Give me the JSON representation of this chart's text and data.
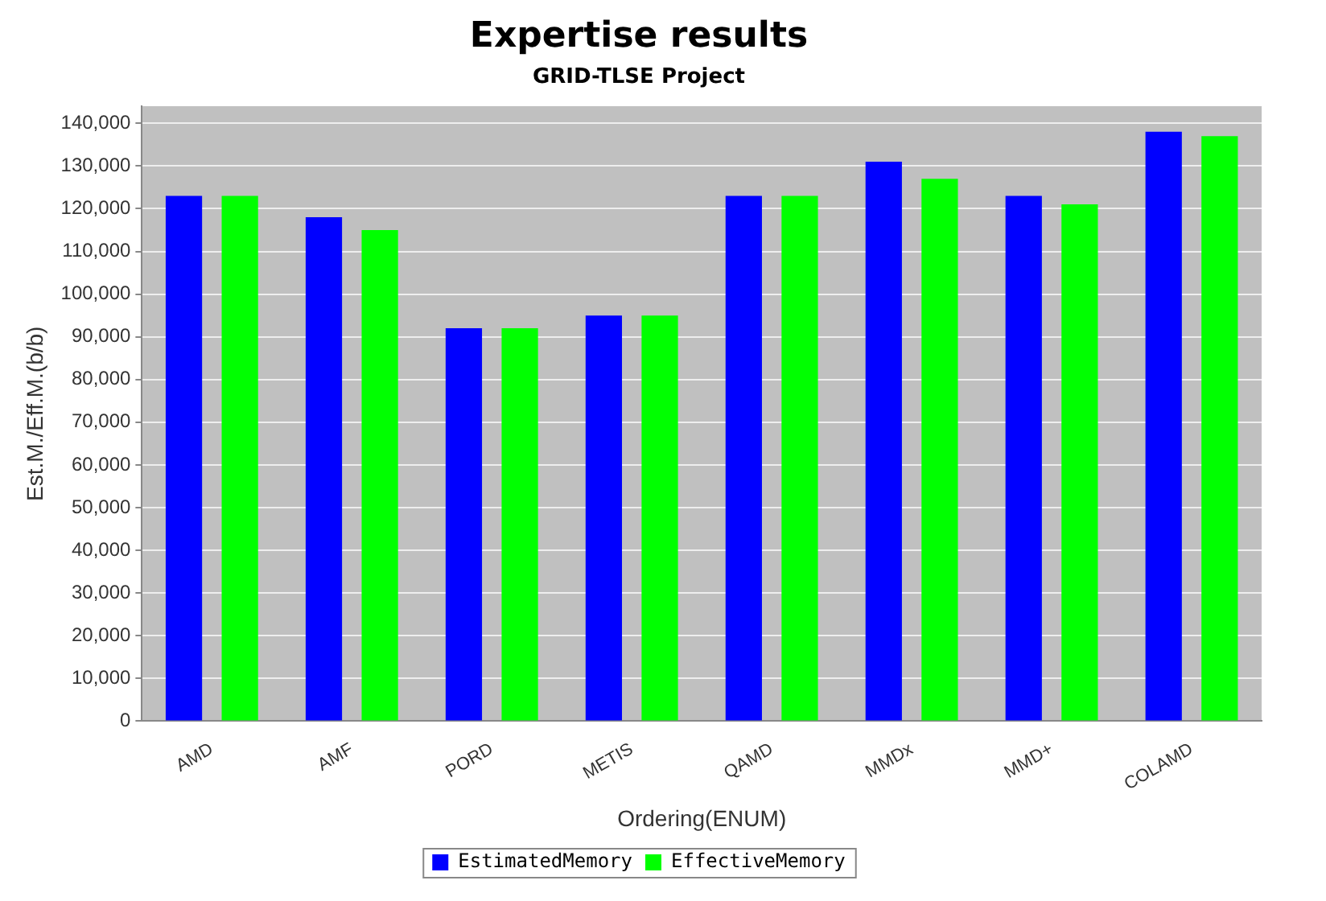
{
  "chart_data": {
    "type": "bar",
    "title": "Expertise results",
    "subtitle": "GRID-TLSE Project",
    "xlabel": "Ordering(ENUM)",
    "ylabel": "Est.M./Eff.M.(b/b)",
    "categories": [
      "AMD",
      "AMF",
      "PORD",
      "METIS",
      "QAMD",
      "MMDx",
      "MMD+",
      "COLAMD"
    ],
    "series": [
      {
        "name": "EstimatedMemory",
        "color": "#0000ff",
        "values": [
          123000,
          118000,
          92000,
          95000,
          123000,
          131000,
          123000,
          138000
        ]
      },
      {
        "name": "EffectiveMemory",
        "color": "#00ff00",
        "values": [
          123000,
          115000,
          92000,
          95000,
          123000,
          127000,
          121000,
          137000
        ]
      }
    ],
    "ylim": [
      0,
      144000
    ],
    "yticks": [
      0,
      {
        "value": 10000,
        "label": "10,000"
      },
      {
        "value": 20000,
        "label": "20,000"
      },
      {
        "value": 30000,
        "label": "30,000"
      },
      {
        "value": 40000,
        "label": "40,000"
      },
      {
        "value": 50000,
        "label": "50,000"
      },
      {
        "value": 60000,
        "label": "60,000"
      },
      {
        "value": 70000,
        "label": "70,000"
      },
      {
        "value": 80000,
        "label": "80,000"
      },
      {
        "value": 90000,
        "label": "90,000"
      },
      {
        "value": 100000,
        "label": "100,000"
      },
      {
        "value": 110000,
        "label": "110,000"
      },
      {
        "value": 120000,
        "label": "120,000"
      },
      {
        "value": 130000,
        "label": "130,000"
      },
      {
        "value": 140000,
        "label": "140,000"
      }
    ],
    "grid": "y",
    "legend": "bottom"
  }
}
